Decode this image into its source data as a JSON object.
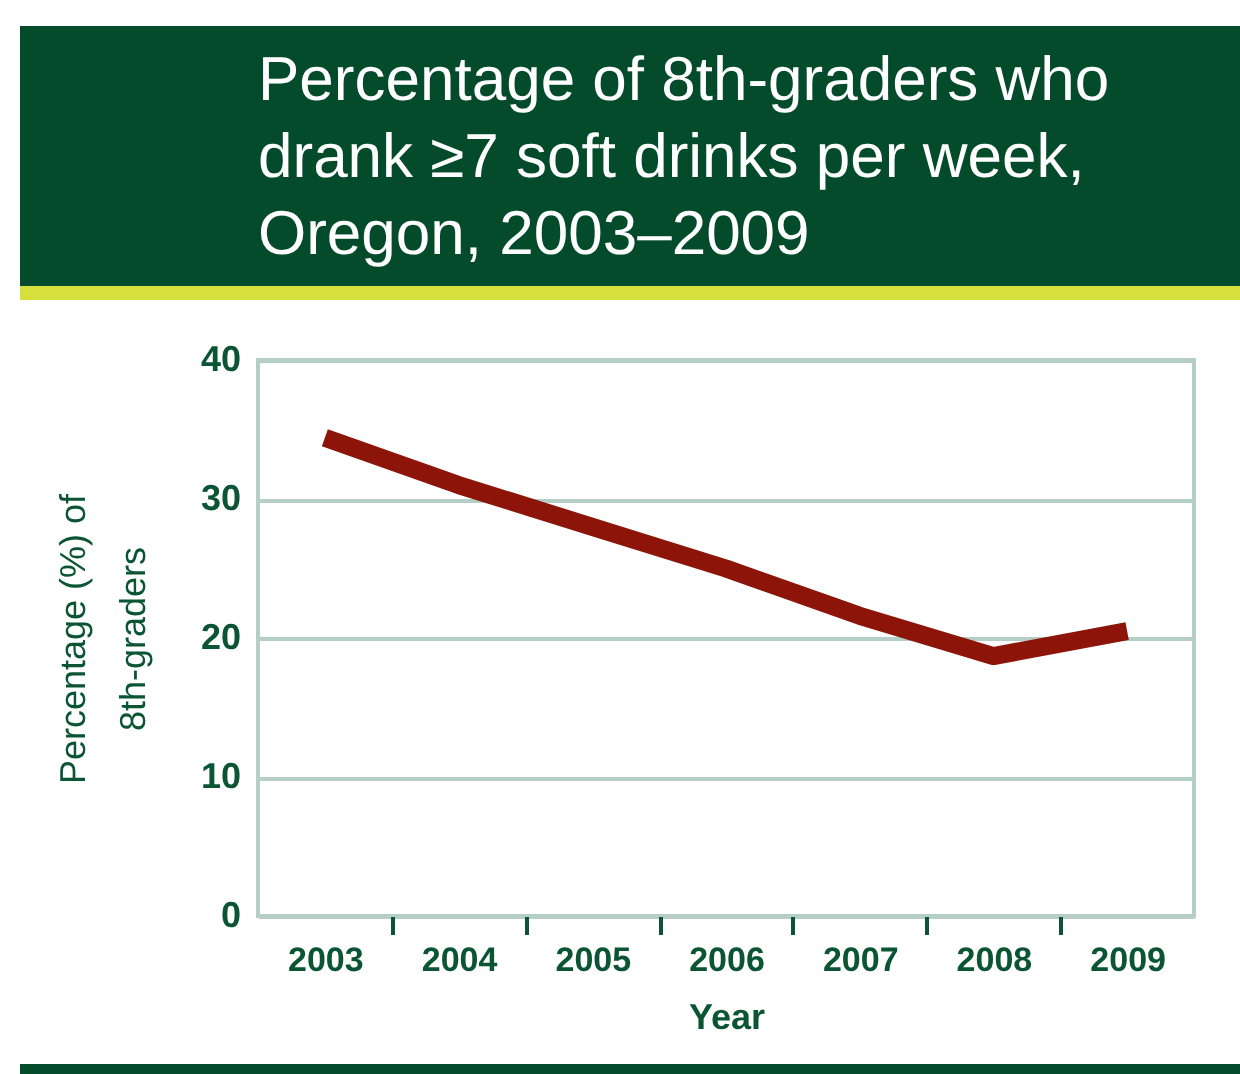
{
  "chart_data": {
    "type": "line",
    "title": "Percentage of 8th-graders who drank ≥7 soft drinks per week, Oregon, 2003–2009",
    "xlabel": "Year",
    "ylabel": "Percentage (%) of 8th-graders",
    "categories": [
      "2003",
      "2004",
      "2005",
      "2006",
      "2007",
      "2008",
      "2009"
    ],
    "series": [
      {
        "color": "#8c1409",
        "values": [
          34.4,
          31.0,
          28.0,
          25.0,
          21.6,
          18.7,
          20.5
        ]
      }
    ],
    "ylim": [
      0,
      40
    ],
    "yticks": [
      0,
      10,
      20,
      30,
      40
    ],
    "grid": "y",
    "legend": false,
    "marker": "none",
    "line_style": "solid"
  }
}
